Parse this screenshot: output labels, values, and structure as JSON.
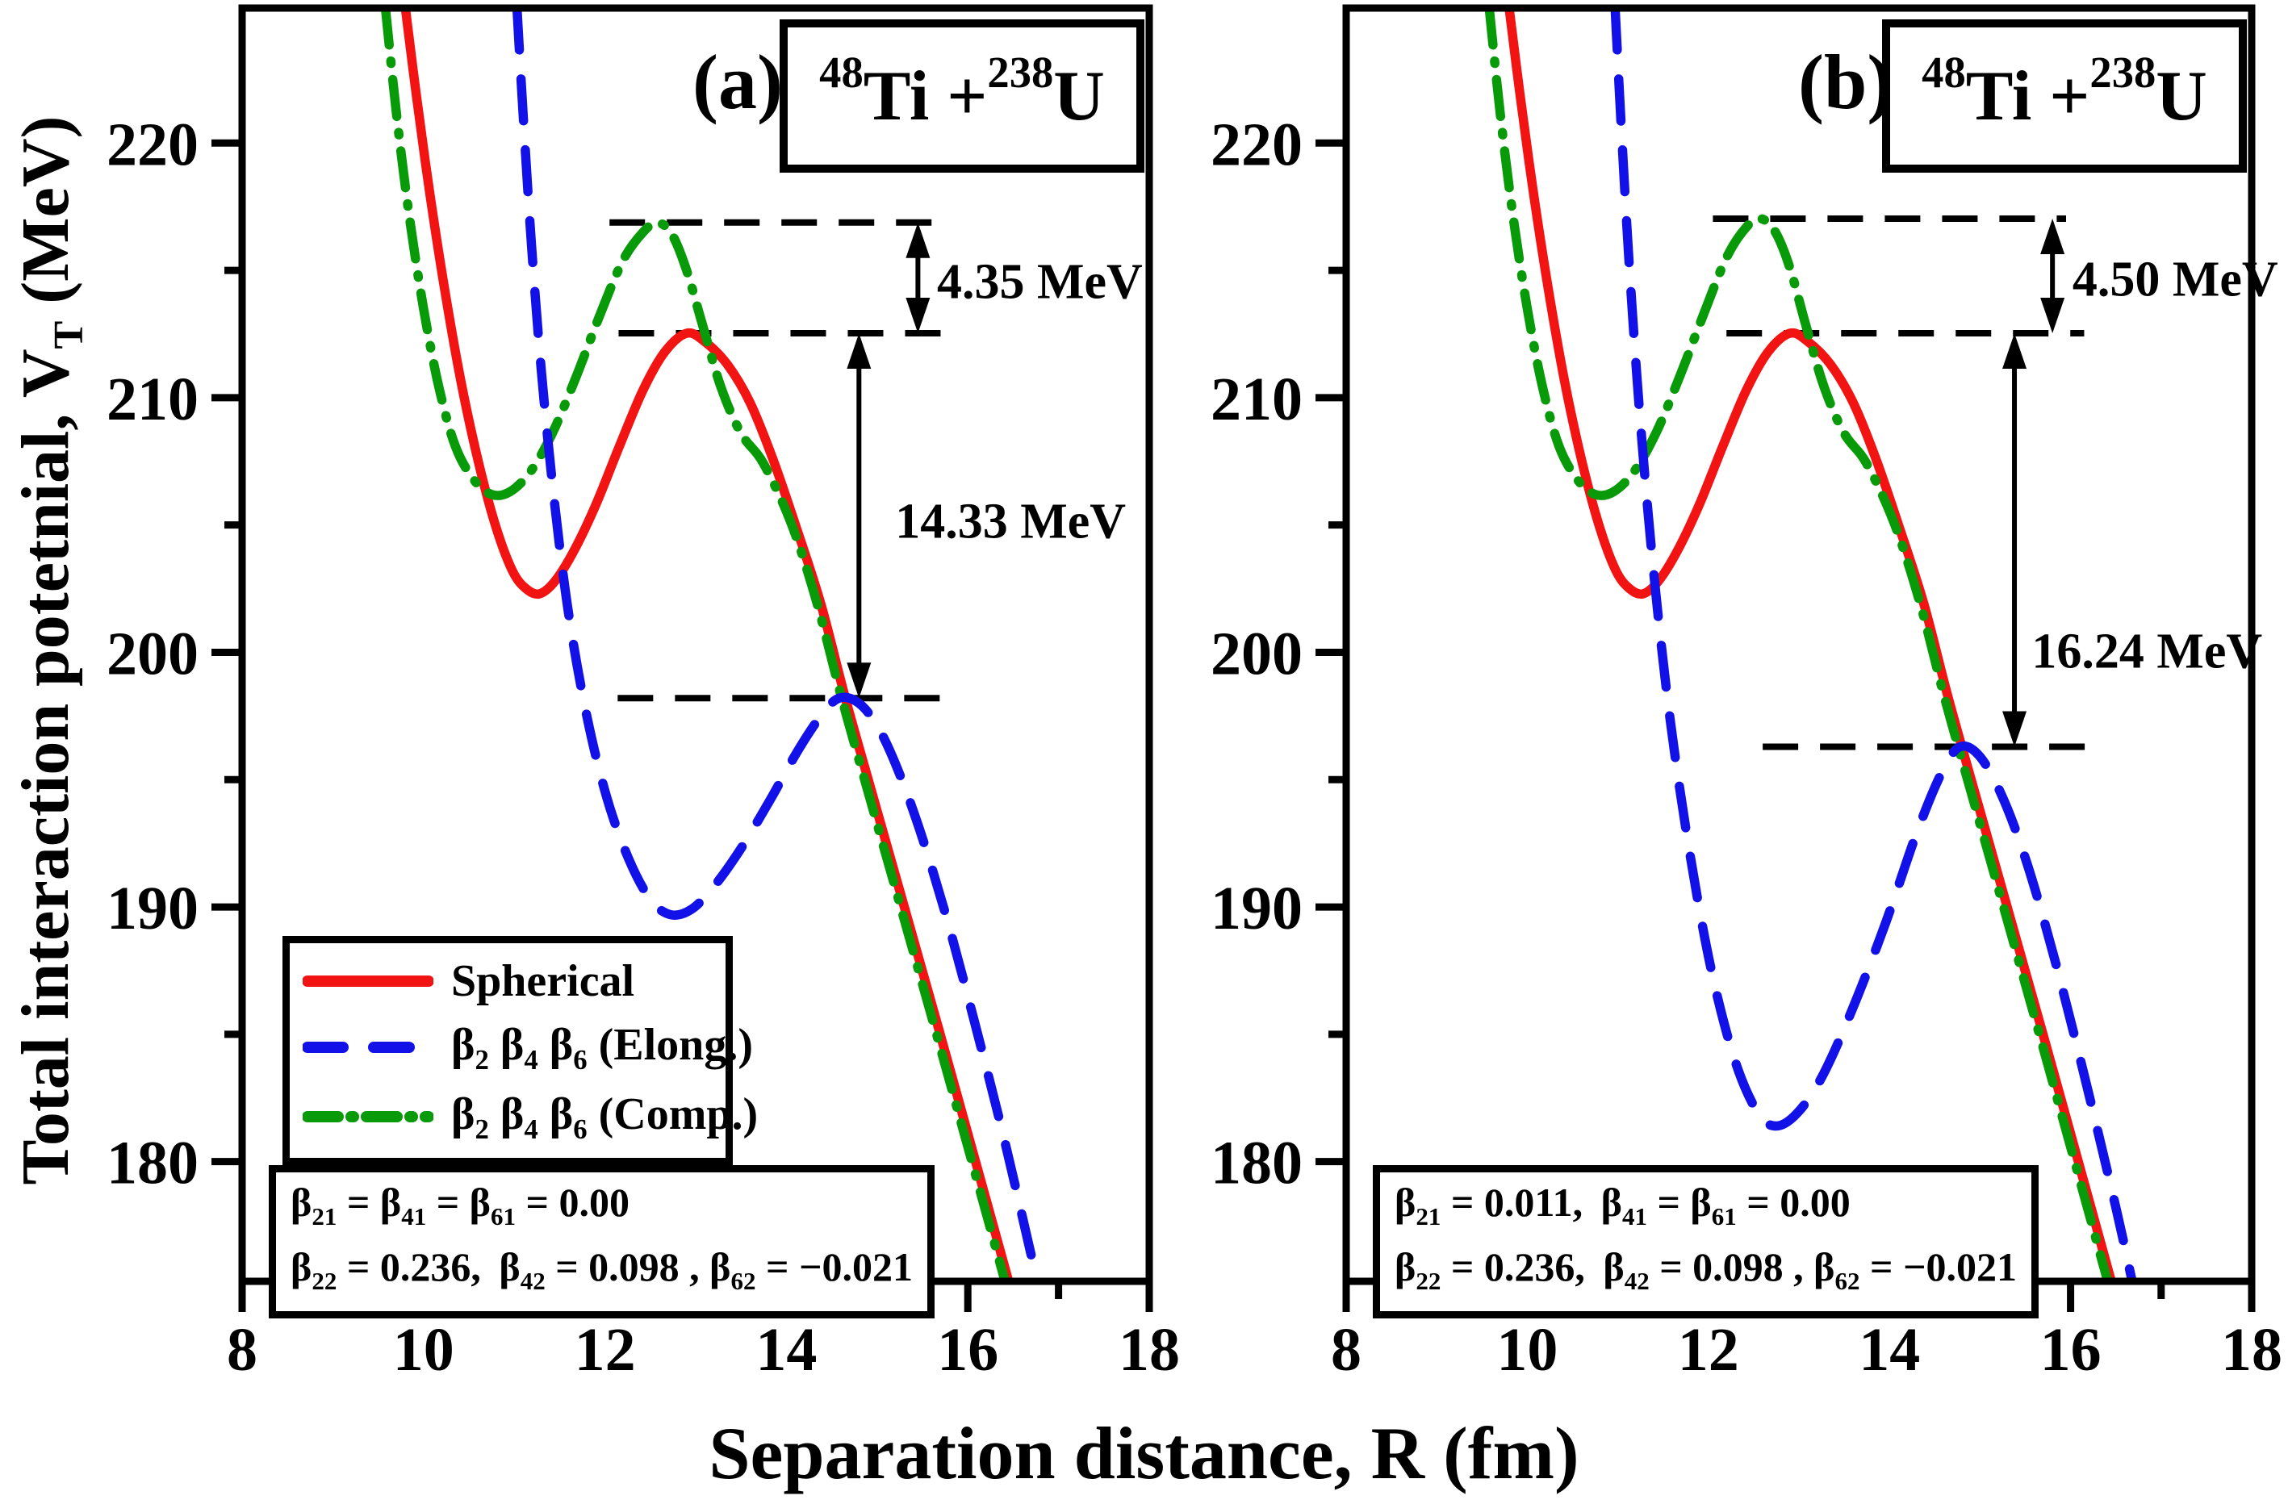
{
  "axes": {
    "x_label": "Separation distance, R (fm)",
    "y_label_html": "Total interaction potetnial, V<sub>T</sub> (MeV)"
  },
  "legend": {
    "items": [
      {
        "label_html": "Spherical",
        "color": "#f21313",
        "style": "solid"
      },
      {
        "label_html": "β<sub>2</sub> β<sub>4</sub> β<sub>6</sub> (Elong.)",
        "color": "#1212e8",
        "style": "dashed"
      },
      {
        "label_html": "β<sub>2</sub> β<sub>4</sub> β<sub>6</sub> (Comp.)",
        "color": "#089a08",
        "style": "dashdot"
      }
    ]
  },
  "panels": [
    {
      "tag": "(a)",
      "reaction_html": "<sup>48</sup>Ti + <sup>238</sup>U",
      "params_line1_html": "β<sub>21</sub> = β<sub>41</sub> = β<sub>61</sub> = 0.00",
      "params_line2_html": "β<sub>22</sub> = 0.236,&#8201; β<sub>42</sub> = 0.098 , β<sub>62</sub> = −0.021"
    },
    {
      "tag": "(b)",
      "reaction_html": "<sup>48</sup>Ti + <sup>238</sup>U",
      "params_line1_html": "β<sub>21</sub> = 0.011,&#8201; β<sub>41</sub> = β<sub>61</sub> = 0.00",
      "params_line2_html": "β<sub>22</sub> = 0.236,&#8201; β<sub>42</sub> = 0.098 , β<sub>62</sub> = −0.021"
    }
  ],
  "chart_data": [
    {
      "panel": "a",
      "type": "line",
      "title": "48Ti + 238U (a)",
      "xlabel": "Separation distance, R (fm)",
      "ylabel": "Total interaction potetnial, V_T (MeV)",
      "xlim": [
        8,
        18
      ],
      "ylim": [
        175.3,
        225.3
      ],
      "x_major_ticks": [
        8,
        10,
        12,
        14,
        16,
        18
      ],
      "x_minor_ticks": [
        9,
        11,
        13,
        15,
        17
      ],
      "y_major_ticks": [
        220,
        210,
        200,
        190,
        180
      ],
      "y_minor_ticks": [
        215,
        205,
        195,
        185
      ],
      "barrier_levels": {
        "spherical": 212.53,
        "compact": 216.88,
        "elongated": 198.2
      },
      "series": [
        {
          "name": "Spherical",
          "style": "solid",
          "color": "#f21313",
          "points": [
            [
              9.8,
              225.3
            ],
            [
              9.92,
              221.9
            ],
            [
              10.07,
              218.0
            ],
            [
              10.24,
              214.1
            ],
            [
              10.42,
              210.5
            ],
            [
              10.61,
              207.4
            ],
            [
              10.8,
              204.9
            ],
            [
              10.98,
              203.2
            ],
            [
              11.13,
              202.5
            ],
            [
              11.28,
              202.3
            ],
            [
              11.45,
              202.8
            ],
            [
              11.66,
              204.0
            ],
            [
              11.9,
              205.8
            ],
            [
              12.16,
              208.1
            ],
            [
              12.42,
              210.3
            ],
            [
              12.66,
              211.8
            ],
            [
              12.9,
              212.53
            ],
            [
              13.1,
              212.2
            ],
            [
              13.35,
              211.3
            ],
            [
              13.6,
              209.8
            ],
            [
              13.85,
              207.6
            ],
            [
              14.1,
              205.0
            ],
            [
              14.38,
              201.9
            ],
            [
              14.65,
              198.2
            ],
            [
              14.95,
              194.4
            ],
            [
              15.3,
              190.0
            ],
            [
              15.68,
              185.2
            ],
            [
              16.07,
              180.2
            ],
            [
              16.45,
              175.3
            ]
          ]
        },
        {
          "name": "β2 β4 β6 (Elong.)",
          "style": "dashed",
          "color": "#1212e8",
          "points": [
            [
              11.03,
              225.3
            ],
            [
              11.1,
              221.0
            ],
            [
              11.19,
              216.0
            ],
            [
              11.3,
              211.0
            ],
            [
              11.44,
              206.0
            ],
            [
              11.6,
              201.5
            ],
            [
              11.8,
              197.5
            ],
            [
              12.02,
              194.3
            ],
            [
              12.26,
              191.9
            ],
            [
              12.5,
              190.3
            ],
            [
              12.72,
              189.7
            ],
            [
              12.95,
              189.9
            ],
            [
              13.2,
              190.8
            ],
            [
              13.5,
              192.3
            ],
            [
              13.82,
              194.2
            ],
            [
              14.12,
              196.1
            ],
            [
              14.38,
              197.5
            ],
            [
              14.58,
              198.2
            ],
            [
              14.8,
              198.0
            ],
            [
              15.02,
              197.0
            ],
            [
              15.25,
              195.2
            ],
            [
              15.5,
              192.7
            ],
            [
              15.78,
              189.4
            ],
            [
              16.08,
              185.4
            ],
            [
              16.4,
              180.9
            ],
            [
              16.72,
              176.0
            ],
            [
              16.77,
              175.3
            ]
          ]
        },
        {
          "name": "β2 β4 β6 (Comp.)",
          "style": "dashdot",
          "color": "#089a08",
          "points": [
            [
              9.58,
              225.3
            ],
            [
              9.7,
              221.2
            ],
            [
              9.84,
              217.2
            ],
            [
              10.0,
              213.5
            ],
            [
              10.17,
              210.4
            ],
            [
              10.35,
              208.1
            ],
            [
              10.55,
              206.8
            ],
            [
              10.75,
              206.2
            ],
            [
              10.95,
              206.3
            ],
            [
              11.18,
              207.1
            ],
            [
              11.42,
              208.6
            ],
            [
              11.68,
              210.8
            ],
            [
              11.95,
              213.3
            ],
            [
              12.2,
              215.4
            ],
            [
              12.42,
              216.5
            ],
            [
              12.58,
              216.88
            ],
            [
              12.74,
              216.4
            ],
            [
              12.9,
              215.0
            ],
            [
              13.08,
              212.8
            ],
            [
              13.28,
              210.4
            ],
            [
              13.5,
              208.6
            ],
            [
              13.75,
              207.4
            ],
            [
              14.06,
              205.0
            ],
            [
              14.34,
              201.9
            ],
            [
              14.61,
              198.2
            ],
            [
              14.91,
              194.4
            ],
            [
              15.26,
              190.0
            ],
            [
              15.64,
              185.2
            ],
            [
              16.03,
              180.2
            ],
            [
              16.41,
              175.3
            ]
          ]
        }
      ],
      "ref_lines": [
        {
          "y": 216.88,
          "x1": 12.05,
          "x2": 15.7,
          "role": "compact-peak-level"
        },
        {
          "y": 212.53,
          "x1": 12.15,
          "x2": 15.82,
          "role": "spherical-peak-level"
        },
        {
          "y": 198.2,
          "x1": 12.14,
          "x2": 15.8,
          "role": "elongated-peak-level"
        }
      ],
      "arrows": [
        {
          "x": 15.45,
          "y1": 216.88,
          "y2": 212.53
        },
        {
          "x": 14.8,
          "y1": 212.53,
          "y2": 198.2
        }
      ],
      "annotations": [
        {
          "text": "4.35 MeV",
          "x": 15.66,
          "y": 214.6
        },
        {
          "text": "14.33 MeV",
          "x": 15.2,
          "y": 205.2
        }
      ]
    },
    {
      "panel": "b",
      "type": "line",
      "title": "48Ti + 238U (b)",
      "xlabel": "Separation distance, R (fm)",
      "ylabel": "Total interaction potetnial, V_T (MeV)",
      "xlim": [
        8,
        18
      ],
      "ylim": [
        175.3,
        225.3
      ],
      "x_major_ticks": [
        8,
        10,
        12,
        14,
        16,
        18
      ],
      "x_minor_ticks": [
        9,
        11,
        13,
        15,
        17
      ],
      "y_major_ticks": [
        220,
        210,
        200,
        190,
        180
      ],
      "y_minor_ticks": [
        215,
        205,
        195,
        185
      ],
      "barrier_levels": {
        "spherical": 212.53,
        "compact": 217.03,
        "elongated": 196.29
      },
      "series": [
        {
          "name": "Spherical",
          "style": "solid",
          "color": "#f21313",
          "points": [
            [
              9.8,
              225.3
            ],
            [
              9.92,
              221.9
            ],
            [
              10.07,
              218.0
            ],
            [
              10.24,
              214.1
            ],
            [
              10.42,
              210.5
            ],
            [
              10.61,
              207.4
            ],
            [
              10.8,
              204.9
            ],
            [
              10.98,
              203.2
            ],
            [
              11.13,
              202.5
            ],
            [
              11.28,
              202.3
            ],
            [
              11.45,
              202.8
            ],
            [
              11.66,
              204.0
            ],
            [
              11.9,
              205.8
            ],
            [
              12.16,
              208.1
            ],
            [
              12.42,
              210.3
            ],
            [
              12.66,
              211.8
            ],
            [
              12.9,
              212.53
            ],
            [
              13.1,
              212.2
            ],
            [
              13.35,
              211.3
            ],
            [
              13.6,
              209.8
            ],
            [
              13.85,
              207.6
            ],
            [
              14.1,
              205.0
            ],
            [
              14.38,
              201.9
            ],
            [
              14.65,
              198.2
            ],
            [
              14.95,
              194.4
            ],
            [
              15.3,
              190.0
            ],
            [
              15.68,
              185.2
            ],
            [
              16.07,
              180.2
            ],
            [
              16.45,
              175.3
            ]
          ]
        },
        {
          "name": "β2 β4 β6 (Elong.)",
          "style": "dashed",
          "color": "#1212e8",
          "points": [
            [
              10.97,
              225.3
            ],
            [
              11.04,
              220.5
            ],
            [
              11.13,
              215.0
            ],
            [
              11.25,
              209.0
            ],
            [
              11.4,
              203.0
            ],
            [
              11.58,
              197.3
            ],
            [
              11.8,
              192.0
            ],
            [
              12.04,
              187.4
            ],
            [
              12.3,
              183.9
            ],
            [
              12.55,
              181.9
            ],
            [
              12.75,
              181.4
            ],
            [
              12.98,
              181.9
            ],
            [
              13.25,
              183.3
            ],
            [
              13.58,
              185.9
            ],
            [
              13.95,
              189.3
            ],
            [
              14.3,
              192.9
            ],
            [
              14.58,
              195.3
            ],
            [
              14.78,
              196.29
            ],
            [
              15.0,
              195.9
            ],
            [
              15.25,
              194.3
            ],
            [
              15.52,
              191.7
            ],
            [
              15.82,
              188.0
            ],
            [
              16.15,
              183.4
            ],
            [
              16.5,
              178.2
            ],
            [
              16.68,
              175.3
            ]
          ]
        },
        {
          "name": "β2 β4 β6 (Comp.)",
          "style": "dashdot",
          "color": "#089a08",
          "points": [
            [
              9.58,
              225.3
            ],
            [
              9.7,
              221.2
            ],
            [
              9.84,
              217.2
            ],
            [
              10.0,
              213.5
            ],
            [
              10.17,
              210.4
            ],
            [
              10.35,
              208.1
            ],
            [
              10.55,
              206.8
            ],
            [
              10.75,
              206.2
            ],
            [
              10.95,
              206.3
            ],
            [
              11.18,
              207.1
            ],
            [
              11.42,
              208.6
            ],
            [
              11.68,
              210.8
            ],
            [
              11.95,
              213.3
            ],
            [
              12.2,
              215.5
            ],
            [
              12.42,
              216.7
            ],
            [
              12.58,
              217.03
            ],
            [
              12.74,
              216.5
            ],
            [
              12.9,
              215.1
            ],
            [
              13.08,
              212.8
            ],
            [
              13.28,
              210.4
            ],
            [
              13.5,
              208.6
            ],
            [
              13.75,
              207.4
            ],
            [
              14.06,
              205.0
            ],
            [
              14.34,
              201.9
            ],
            [
              14.61,
              198.2
            ],
            [
              14.91,
              194.4
            ],
            [
              15.26,
              190.0
            ],
            [
              15.64,
              185.2
            ],
            [
              16.03,
              180.2
            ],
            [
              16.41,
              175.3
            ]
          ]
        }
      ],
      "ref_lines": [
        {
          "y": 217.03,
          "x1": 12.05,
          "x2": 15.95,
          "role": "compact-peak-level"
        },
        {
          "y": 212.53,
          "x1": 12.2,
          "x2": 16.15,
          "role": "spherical-peak-level"
        },
        {
          "y": 196.29,
          "x1": 12.6,
          "x2": 16.33,
          "role": "elongated-peak-level"
        }
      ],
      "arrows": [
        {
          "x": 15.8,
          "y1": 217.03,
          "y2": 212.53
        },
        {
          "x": 15.38,
          "y1": 212.53,
          "y2": 196.29
        }
      ],
      "annotations": [
        {
          "text": "4.50 MeV",
          "x": 16.02,
          "y": 214.7
        },
        {
          "text": "16.24 MeV",
          "x": 15.57,
          "y": 200.1
        }
      ]
    }
  ]
}
